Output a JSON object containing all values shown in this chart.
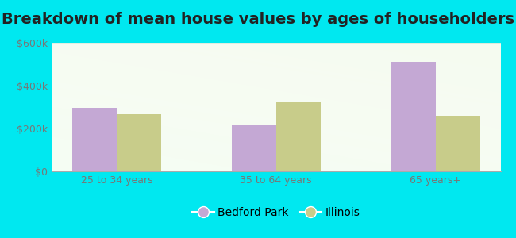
{
  "title": "Breakdown of mean house values by ages of householders",
  "categories": [
    "25 to 34 years",
    "35 to 64 years",
    "65 years+"
  ],
  "bedford_park": [
    295000,
    220000,
    510000
  ],
  "illinois": [
    265000,
    325000,
    260000
  ],
  "bedford_color": "#c4a8d4",
  "illinois_color": "#c8cc8a",
  "ylim": [
    0,
    600000
  ],
  "yticks": [
    0,
    200000,
    400000,
    600000
  ],
  "ytick_labels": [
    "$0",
    "$200k",
    "$400k",
    "$600k"
  ],
  "legend_labels": [
    "Bedford Park",
    "Illinois"
  ],
  "background_outer": "#00e8f0",
  "bar_width": 0.28,
  "title_fontsize": 14,
  "tick_fontsize": 9,
  "legend_fontsize": 10
}
